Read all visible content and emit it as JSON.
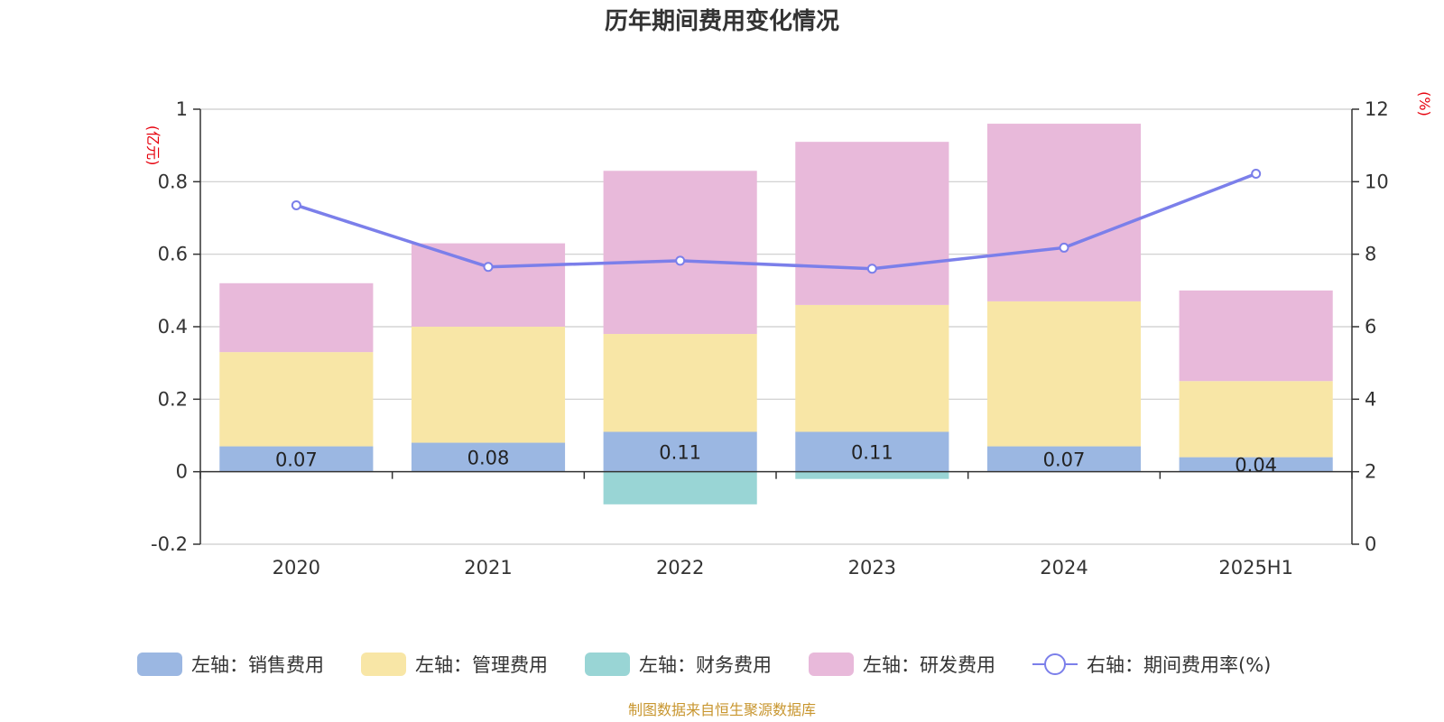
{
  "chart_data": {
    "type": "bar",
    "title": "历年期间费用变化情况",
    "categories": [
      "2020",
      "2021",
      "2022",
      "2023",
      "2024",
      "2025H1"
    ],
    "y_left": {
      "unit": "(亿元)",
      "ylim": [
        -0.2,
        1
      ],
      "ticks": [
        -0.2,
        0,
        0.2,
        0.4,
        0.6,
        0.8,
        1
      ],
      "tick_labels": [
        "-0.2",
        "0",
        "0.2",
        "0.4",
        "0.6",
        "0.8",
        "1"
      ]
    },
    "y_right": {
      "unit": "(%)",
      "ylim": [
        0,
        12
      ],
      "ticks": [
        0,
        2,
        4,
        6,
        8,
        10,
        12
      ],
      "tick_labels": [
        "0",
        "2",
        "4",
        "6",
        "8",
        "10",
        "12"
      ]
    },
    "grid": true,
    "legend_position": "bottom",
    "series": [
      {
        "name": "左轴：销售费用",
        "type": "bar",
        "axis": "left",
        "color": "#9bb7e2",
        "values": [
          0.07,
          0.08,
          0.11,
          0.11,
          0.07,
          0.04
        ],
        "labels": [
          "0.07",
          "0.08",
          "0.11",
          "0.11",
          "0.07",
          "0.04"
        ]
      },
      {
        "name": "左轴：管理费用",
        "type": "bar",
        "axis": "left",
        "color": "#f8e6a6",
        "values": [
          0.26,
          0.32,
          0.27,
          0.35,
          0.4,
          0.21
        ]
      },
      {
        "name": "左轴：财务费用",
        "type": "bar",
        "axis": "left",
        "color": "#99d5d5",
        "values": [
          0.0,
          0.0,
          -0.09,
          -0.02,
          0.0,
          0.0
        ]
      },
      {
        "name": "左轴：研发费用",
        "type": "bar",
        "axis": "left",
        "color": "#e8b9da",
        "values": [
          0.19,
          0.23,
          0.45,
          0.45,
          0.49,
          0.25
        ]
      },
      {
        "name": "右轴：期间费用率(%)",
        "type": "line",
        "axis": "right",
        "color": "#7b7fea",
        "values": [
          9.35,
          7.65,
          7.82,
          7.6,
          8.18,
          10.22
        ]
      }
    ],
    "source": "制图数据来自恒生聚源数据库"
  }
}
